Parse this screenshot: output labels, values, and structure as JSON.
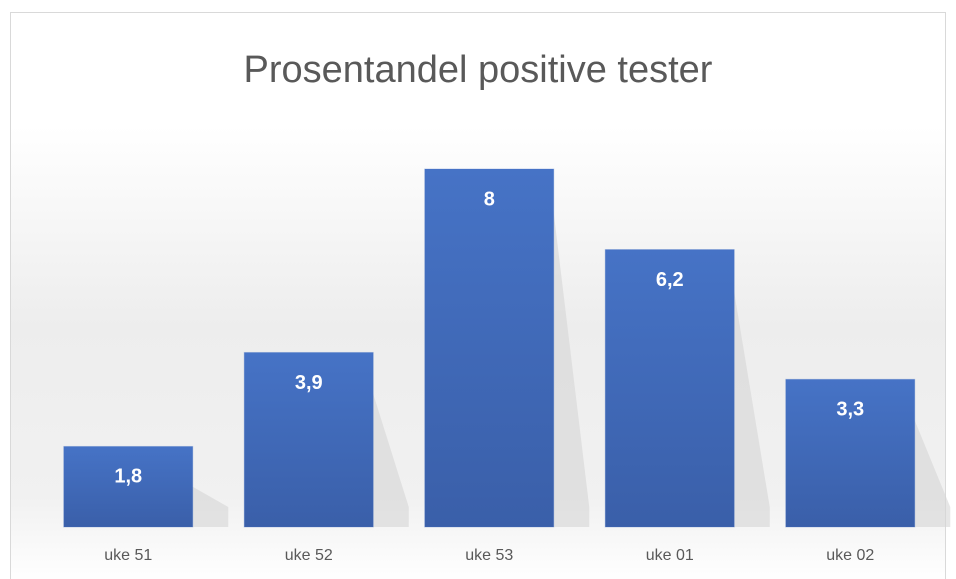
{
  "chart_data": {
    "type": "bar",
    "title": "Prosentandel positive tester",
    "categories": [
      "uke 51",
      "uke 52",
      "uke 53",
      "uke 01",
      "uke 02"
    ],
    "values": [
      1.8,
      3.9,
      8,
      6.2,
      3.3
    ],
    "value_labels": [
      "1,8",
      "3,9",
      "8",
      "6,2",
      "3,3"
    ],
    "color": "#4472c4"
  }
}
